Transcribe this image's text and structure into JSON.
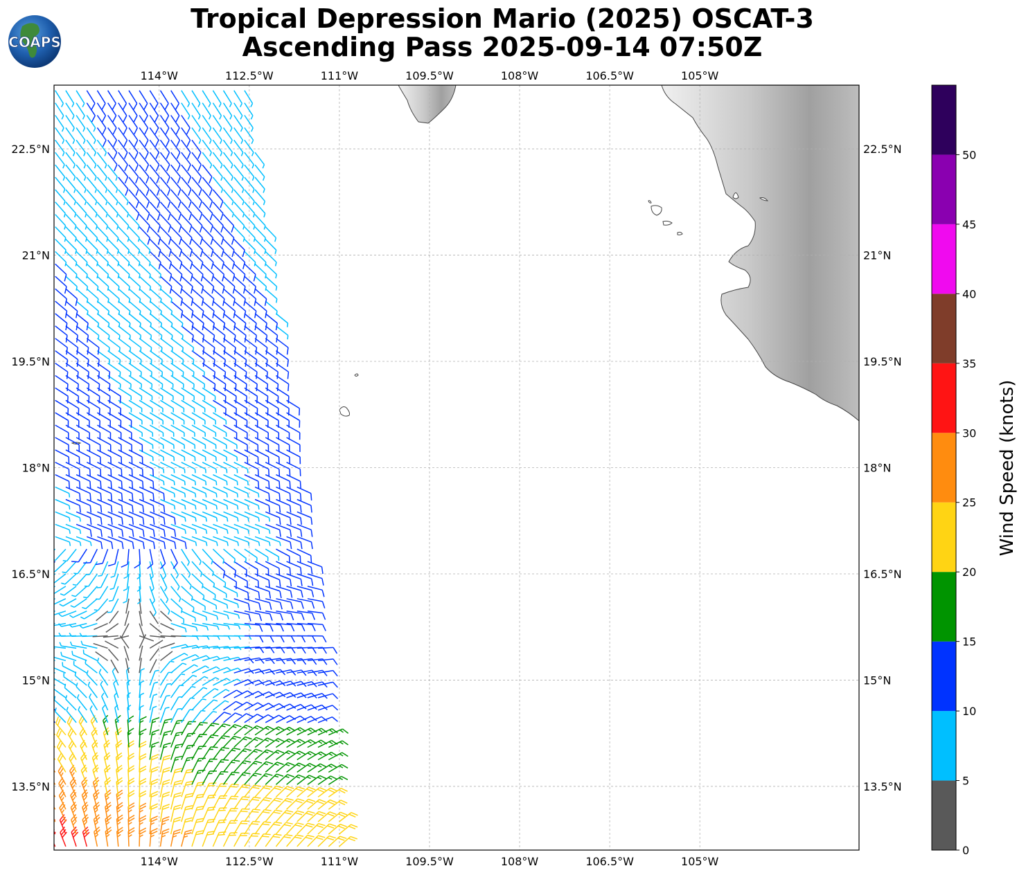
{
  "header": {
    "title_line1": "Tropical Depression Mario (2025) OSCAT-3",
    "title_line2": "Ascending Pass 2025-09-14 07:50Z",
    "logo_text": "COAPS"
  },
  "map": {
    "lon_range": [
      -115.75,
      -102.35
    ],
    "lat_range": [
      12.6,
      23.4
    ],
    "lon_ticks": [
      {
        "value": -114.0,
        "label": "114°W"
      },
      {
        "value": -112.5,
        "label": "112.5°W"
      },
      {
        "value": -111.0,
        "label": "111°W"
      },
      {
        "value": -109.5,
        "label": "109.5°W"
      },
      {
        "value": -108.0,
        "label": "108°W"
      },
      {
        "value": -106.5,
        "label": "106.5°W"
      },
      {
        "value": -105.0,
        "label": "105°W"
      }
    ],
    "lat_ticks": [
      {
        "value": 22.5,
        "label": "22.5°N"
      },
      {
        "value": 21.0,
        "label": "21°N"
      },
      {
        "value": 19.5,
        "label": "19.5°N"
      },
      {
        "value": 18.0,
        "label": "18°N"
      },
      {
        "value": 16.5,
        "label": "16.5°N"
      },
      {
        "value": 15.0,
        "label": "15°N"
      },
      {
        "value": 13.5,
        "label": "13.5°N"
      }
    ],
    "gridlines": true,
    "land_color": "#a8a8a8",
    "coast_color": "#444444",
    "swath": {
      "west_lon": -115.75,
      "east_lon_south": -110.93,
      "east_lon_north": -112.52
    }
  },
  "colorbar": {
    "title": "Wind Speed (knots)",
    "ticks": [
      "0",
      "5",
      "10",
      "15",
      "20",
      "25",
      "30",
      "35",
      "40",
      "45",
      "50"
    ],
    "bins": [
      {
        "min": 0,
        "max": 5,
        "color": "#595959"
      },
      {
        "min": 5,
        "max": 10,
        "color": "#00bfff"
      },
      {
        "min": 10,
        "max": 15,
        "color": "#0033ff"
      },
      {
        "min": 15,
        "max": 20,
        "color": "#009400"
      },
      {
        "min": 20,
        "max": 25,
        "color": "#ffd414"
      },
      {
        "min": 25,
        "max": 30,
        "color": "#ff8c0f"
      },
      {
        "min": 30,
        "max": 35,
        "color": "#ff1414"
      },
      {
        "min": 35,
        "max": 40,
        "color": "#7f3d2a"
      },
      {
        "min": 40,
        "max": 45,
        "color": "#f00aef"
      },
      {
        "min": 45,
        "max": 50,
        "color": "#8a00b0"
      },
      {
        "min": 50,
        "max": 55,
        "color": "#2e005c"
      }
    ]
  }
}
